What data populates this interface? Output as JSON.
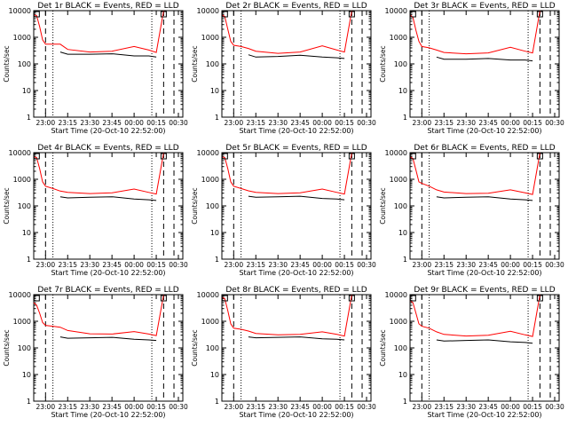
{
  "xtick_labels": [
    "23:00",
    "23:15",
    "23:30",
    "23:45",
    "00:00",
    "00:15",
    "00:30"
  ],
  "ytick_labels": [
    "1",
    "10",
    "100",
    "1000",
    "10000"
  ],
  "xlabel": "Start Time (20-Oct-10 22:52:00)",
  "ylabel": "Counts/sec",
  "colors": {
    "events": "#000000",
    "lld": "#ff0000",
    "axes": "#000000"
  },
  "chart_data": [
    {
      "type": "line",
      "title": "Det 1r BLACK = Events, RED = LLD",
      "x": [
        "22:52",
        "22:54",
        "22:56",
        "22:58",
        "23:00",
        "23:05",
        "23:10",
        "23:15",
        "23:30",
        "23:45",
        "00:00",
        "00:10",
        "00:15",
        "00:20"
      ],
      "series": [
        {
          "name": "RED = LLD",
          "color": "#ff0000",
          "values": [
            7000,
            6500,
            2500,
            800,
            550,
            550,
            550,
            350,
            280,
            300,
            450,
            330,
            270,
            10000
          ]
        },
        {
          "name": "BLACK = Events",
          "color": "#000000",
          "values": [
            null,
            null,
            null,
            null,
            null,
            null,
            280,
            230,
            230,
            240,
            200,
            200,
            180,
            null
          ]
        }
      ],
      "ylim": [
        1,
        10000
      ],
      "yscale": "log",
      "xlim": [
        "22:52",
        "00:33"
      ]
    },
    {
      "type": "line",
      "title": "Det 2r BLACK = Events, RED = LLD",
      "x": [
        "22:52",
        "22:54",
        "22:56",
        "22:58",
        "23:00",
        "23:05",
        "23:10",
        "23:15",
        "23:30",
        "23:45",
        "00:00",
        "00:10",
        "00:15",
        "00:20"
      ],
      "series": [
        {
          "name": "RED = LLD",
          "color": "#ff0000",
          "values": [
            7000,
            6000,
            2000,
            700,
            500,
            450,
            380,
            300,
            250,
            280,
            480,
            330,
            280,
            10000
          ]
        },
        {
          "name": "BLACK = Events",
          "color": "#000000",
          "values": [
            null,
            null,
            null,
            null,
            null,
            null,
            220,
            180,
            190,
            210,
            180,
            170,
            160,
            null
          ]
        }
      ],
      "ylim": [
        1,
        10000
      ],
      "yscale": "log",
      "xlim": [
        "22:52",
        "00:33"
      ]
    },
    {
      "type": "line",
      "title": "Det 3r BLACK = Events, RED = LLD",
      "x": [
        "22:52",
        "22:54",
        "22:56",
        "22:58",
        "23:00",
        "23:05",
        "23:10",
        "23:15",
        "23:30",
        "23:45",
        "00:00",
        "00:10",
        "00:15",
        "00:20"
      ],
      "series": [
        {
          "name": "RED = LLD",
          "color": "#ff0000",
          "values": [
            7000,
            5500,
            1800,
            700,
            450,
            400,
            330,
            270,
            240,
            260,
            420,
            300,
            260,
            10000
          ]
        },
        {
          "name": "BLACK = Events",
          "color": "#000000",
          "values": [
            null,
            null,
            null,
            null,
            null,
            null,
            180,
            150,
            150,
            160,
            140,
            140,
            130,
            null
          ]
        }
      ],
      "ylim": [
        1,
        10000
      ],
      "yscale": "log",
      "xlim": [
        "22:52",
        "00:33"
      ]
    },
    {
      "type": "line",
      "title": "Det 4r BLACK = Events, RED = LLD",
      "x": [
        "22:52",
        "22:54",
        "22:56",
        "22:58",
        "23:00",
        "23:05",
        "23:10",
        "23:15",
        "23:30",
        "23:45",
        "00:00",
        "00:10",
        "00:15",
        "00:20"
      ],
      "series": [
        {
          "name": "RED = LLD",
          "color": "#ff0000",
          "values": [
            7000,
            6500,
            2500,
            800,
            550,
            450,
            360,
            320,
            290,
            310,
            430,
            320,
            280,
            10000
          ]
        },
        {
          "name": "BLACK = Events",
          "color": "#000000",
          "values": [
            null,
            null,
            null,
            null,
            null,
            null,
            220,
            200,
            210,
            220,
            180,
            170,
            160,
            null
          ]
        }
      ],
      "ylim": [
        1,
        10000
      ],
      "yscale": "log",
      "xlim": [
        "22:52",
        "00:33"
      ]
    },
    {
      "type": "line",
      "title": "Det 5r BLACK = Events, RED = LLD",
      "x": [
        "22:52",
        "22:54",
        "22:56",
        "22:58",
        "23:00",
        "23:05",
        "23:10",
        "23:15",
        "23:30",
        "23:45",
        "00:00",
        "00:10",
        "00:15",
        "00:20"
      ],
      "series": [
        {
          "name": "RED = LLD",
          "color": "#ff0000",
          "values": [
            7000,
            6500,
            2500,
            800,
            550,
            450,
            370,
            320,
            290,
            310,
            430,
            320,
            280,
            10000
          ]
        },
        {
          "name": "BLACK = Events",
          "color": "#000000",
          "values": [
            null,
            null,
            null,
            null,
            null,
            null,
            230,
            210,
            220,
            230,
            190,
            180,
            170,
            null
          ]
        }
      ],
      "ylim": [
        1,
        10000
      ],
      "yscale": "log",
      "xlim": [
        "22:52",
        "00:33"
      ]
    },
    {
      "type": "line",
      "title": "Det 6r BLACK = Events, RED = LLD",
      "x": [
        "22:52",
        "22:54",
        "22:56",
        "22:58",
        "23:00",
        "23:05",
        "23:10",
        "23:15",
        "23:30",
        "23:45",
        "00:00",
        "00:10",
        "00:15",
        "00:20"
      ],
      "series": [
        {
          "name": "RED = LLD",
          "color": "#ff0000",
          "values": [
            7000,
            6000,
            2200,
            800,
            700,
            550,
            400,
            330,
            290,
            300,
            400,
            310,
            270,
            10000
          ]
        },
        {
          "name": "BLACK = Events",
          "color": "#000000",
          "values": [
            null,
            null,
            null,
            null,
            null,
            null,
            220,
            200,
            210,
            220,
            180,
            170,
            160,
            null
          ]
        }
      ],
      "ylim": [
        1,
        10000
      ],
      "yscale": "log",
      "xlim": [
        "22:52",
        "00:33"
      ]
    },
    {
      "type": "line",
      "title": "Det 7r BLACK = Events, RED = LLD",
      "x": [
        "22:52",
        "22:54",
        "22:56",
        "22:58",
        "23:00",
        "23:05",
        "23:10",
        "23:15",
        "23:30",
        "23:45",
        "00:00",
        "00:10",
        "00:15",
        "00:20"
      ],
      "series": [
        {
          "name": "RED = LLD",
          "color": "#ff0000",
          "values": [
            5000,
            4000,
            2000,
            900,
            700,
            650,
            600,
            450,
            340,
            330,
            410,
            330,
            290,
            10000
          ]
        },
        {
          "name": "BLACK = Events",
          "color": "#000000",
          "values": [
            null,
            null,
            null,
            null,
            null,
            null,
            260,
            230,
            240,
            250,
            210,
            200,
            190,
            null
          ]
        }
      ],
      "ylim": [
        1,
        10000
      ],
      "yscale": "log",
      "xlim": [
        "22:52",
        "00:33"
      ]
    },
    {
      "type": "line",
      "title": "Det 8r BLACK = Events, RED = LLD",
      "x": [
        "22:52",
        "22:54",
        "22:56",
        "22:58",
        "23:00",
        "23:05",
        "23:10",
        "23:15",
        "23:30",
        "23:45",
        "00:00",
        "00:10",
        "00:15",
        "00:20"
      ],
      "series": [
        {
          "name": "RED = LLD",
          "color": "#ff0000",
          "values": [
            8000,
            7000,
            2500,
            800,
            550,
            500,
            430,
            350,
            310,
            320,
            400,
            320,
            280,
            10000
          ]
        },
        {
          "name": "BLACK = Events",
          "color": "#000000",
          "values": [
            null,
            null,
            null,
            null,
            null,
            null,
            260,
            240,
            250,
            260,
            220,
            210,
            200,
            null
          ]
        }
      ],
      "ylim": [
        1,
        10000
      ],
      "yscale": "log",
      "xlim": [
        "22:52",
        "00:33"
      ]
    },
    {
      "type": "line",
      "title": "Det 9r BLACK = Events, RED = LLD",
      "x": [
        "22:52",
        "22:54",
        "22:56",
        "22:58",
        "23:00",
        "23:05",
        "23:10",
        "23:15",
        "23:30",
        "23:45",
        "00:00",
        "00:10",
        "00:15",
        "00:20"
      ],
      "series": [
        {
          "name": "RED = LLD",
          "color": "#ff0000",
          "values": [
            6000,
            5000,
            2000,
            800,
            650,
            550,
            400,
            320,
            280,
            300,
            420,
            310,
            270,
            10000
          ]
        },
        {
          "name": "BLACK = Events",
          "color": "#000000",
          "values": [
            null,
            null,
            null,
            null,
            null,
            null,
            200,
            180,
            190,
            200,
            170,
            160,
            150,
            null
          ]
        }
      ],
      "ylim": [
        1,
        10000
      ],
      "yscale": "log",
      "xlim": [
        "22:52",
        "00:33"
      ]
    }
  ],
  "markers": {
    "dashed": [
      "23:00",
      "00:20",
      "00:27"
    ],
    "dotted": [
      "23:05",
      "00:12"
    ]
  }
}
